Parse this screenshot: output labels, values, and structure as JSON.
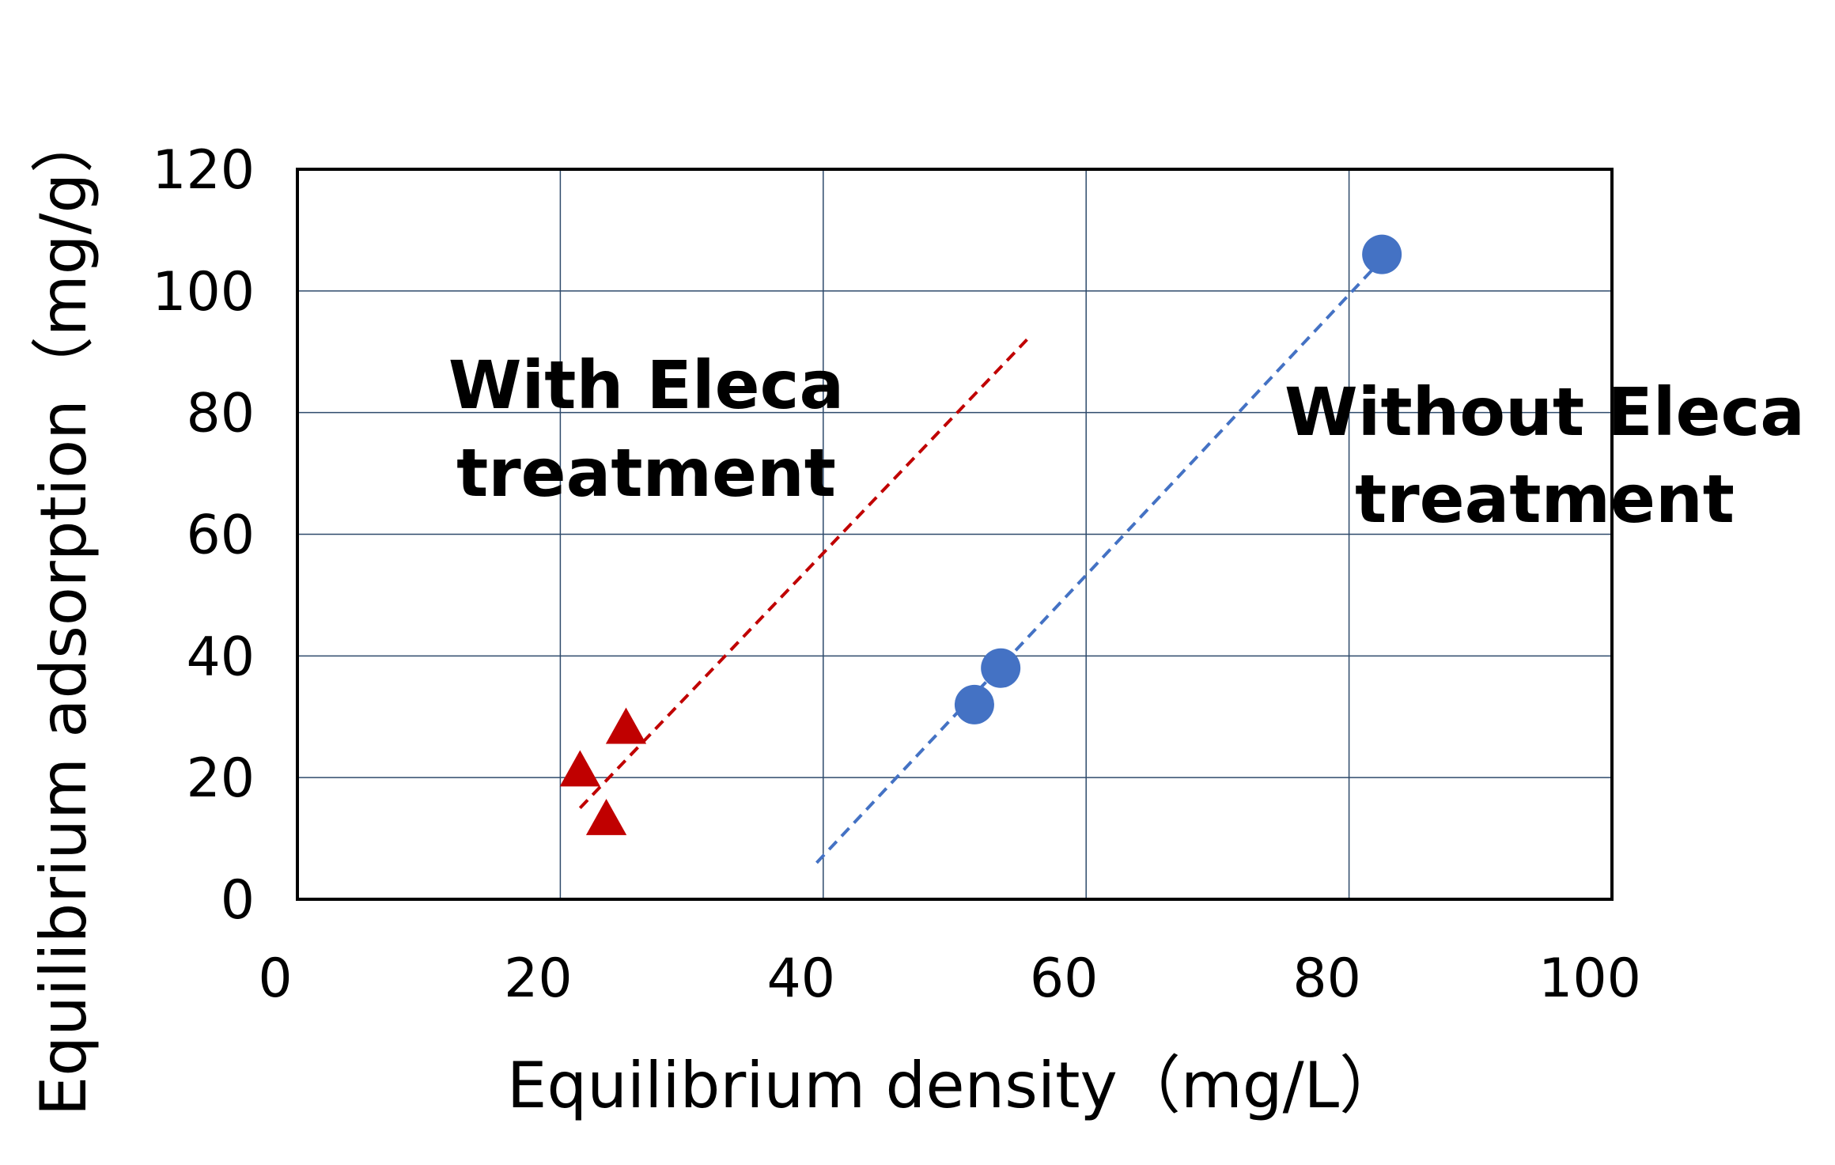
{
  "chart_data": {
    "type": "scatter",
    "title": "",
    "xlabel": "Equilibrium density（mg/L）",
    "ylabel": "Equilibrium adsorption（mg/g）",
    "xlim": [
      0,
      100
    ],
    "ylim": [
      0,
      120
    ],
    "x_ticks": [
      0,
      20,
      40,
      60,
      80,
      100
    ],
    "y_ticks": [
      0,
      20,
      40,
      60,
      80,
      100,
      120
    ],
    "grid": true,
    "legend": "none",
    "series": [
      {
        "marker": "triangle",
        "color": "#c00000",
        "points": [
          {
            "x": 21.5,
            "y": 21
          },
          {
            "x": 25,
            "y": 28
          },
          {
            "x": 23.5,
            "y": 13
          }
        ],
        "trendline": {
          "from": {
            "x": 21.5,
            "y": 15
          },
          "to": {
            "x": 55.5,
            "y": 92
          }
        }
      },
      {
        "marker": "circle",
        "color": "#4472c4",
        "points": [
          {
            "x": 51.5,
            "y": 32
          },
          {
            "x": 53.5,
            "y": 38
          },
          {
            "x": 82.5,
            "y": 106
          }
        ],
        "trendline": {
          "from": {
            "x": 39.5,
            "y": 6
          },
          "to": {
            "x": 82,
            "y": 104
          }
        }
      }
    ],
    "annotations": [
      {
        "id": "with",
        "lines": [
          "With Eleca",
          "treatment"
        ]
      },
      {
        "id": "without",
        "lines": [
          "Without Eleca",
          "treatment"
        ]
      }
    ]
  }
}
